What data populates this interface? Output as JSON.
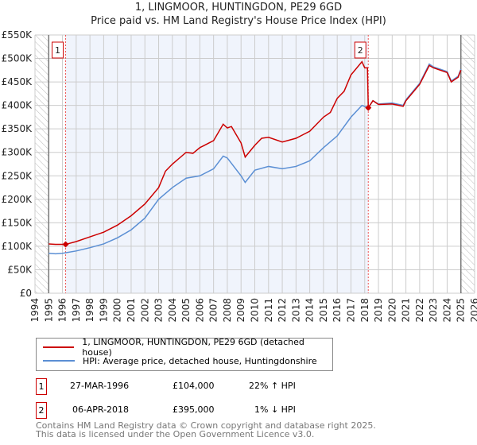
{
  "title": "1, LINGMOOR, HUNTINGDON, PE29 6GD",
  "subtitle": "Price paid vs. HM Land Registry's House Price Index (HPI)",
  "chart_data": {
    "type": "line",
    "ylim": [
      0,
      550000
    ],
    "xlim": [
      1994,
      2026
    ],
    "yticks": [
      {
        "v": 0,
        "l": "£0"
      },
      {
        "v": 50000,
        "l": "£50K"
      },
      {
        "v": 100000,
        "l": "£100K"
      },
      {
        "v": 150000,
        "l": "£150K"
      },
      {
        "v": 200000,
        "l": "£200K"
      },
      {
        "v": 250000,
        "l": "£250K"
      },
      {
        "v": 300000,
        "l": "£300K"
      },
      {
        "v": 350000,
        "l": "£350K"
      },
      {
        "v": 400000,
        "l": "£400K"
      },
      {
        "v": 450000,
        "l": "£450K"
      },
      {
        "v": 500000,
        "l": "£500K"
      },
      {
        "v": 550000,
        "l": "£550K"
      }
    ],
    "xticks": [
      "1994",
      "1995",
      "1996",
      "1997",
      "1998",
      "1999",
      "2000",
      "2001",
      "2002",
      "2003",
      "2004",
      "2005",
      "2006",
      "2007",
      "2008",
      "2009",
      "2010",
      "2011",
      "2012",
      "2013",
      "2014",
      "2015",
      "2016",
      "2017",
      "2018",
      "2019",
      "2020",
      "2021",
      "2022",
      "2023",
      "2024",
      "2025",
      "2026"
    ],
    "data_range": [
      1995,
      2025
    ],
    "shaded_range": [
      1996.23,
      2018.26
    ],
    "series": [
      {
        "name": "1, LINGMOOR, HUNTINGDON, PE29 6GD (detached house)",
        "color": "#cc0000",
        "x": [
          1995,
          1995.5,
          1996.23,
          1997,
          1998,
          1999,
          2000,
          2001,
          2002,
          2003,
          2003.5,
          2004,
          2005,
          2005.5,
          2006,
          2007,
          2007.7,
          2008,
          2008.3,
          2009,
          2009.3,
          2010,
          2010.5,
          2011,
          2012,
          2013,
          2014,
          2015,
          2015.5,
          2016,
          2016.5,
          2017,
          2017.8,
          2018,
          2018.2,
          2018.26,
          2018.6,
          2019,
          2020,
          2020.8,
          2021,
          2022,
          2022.7,
          2023,
          2023.5,
          2024,
          2024.3,
          2024.8,
          2025
        ],
        "y": [
          105000,
          104000,
          104000,
          110000,
          120000,
          130000,
          145000,
          165000,
          190000,
          225000,
          260000,
          275000,
          300000,
          298000,
          310000,
          325000,
          360000,
          352000,
          355000,
          320000,
          290000,
          315000,
          330000,
          332000,
          322000,
          330000,
          345000,
          375000,
          385000,
          415000,
          430000,
          465000,
          493000,
          480000,
          480000,
          395000,
          410000,
          402000,
          403000,
          398000,
          410000,
          445000,
          485000,
          480000,
          475000,
          470000,
          450000,
          460000,
          475000
        ]
      },
      {
        "name": "HPI: Average price, detached house, Huntingdonshire",
        "color": "#5b8fd4",
        "x": [
          1995,
          1995.5,
          1996,
          1997,
          1998,
          1999,
          2000,
          2001,
          2002,
          2003,
          2004,
          2005,
          2006,
          2007,
          2007.7,
          2008,
          2009,
          2009.3,
          2010,
          2011,
          2012,
          2013,
          2014,
          2015,
          2016,
          2017,
          2017.8,
          2018.26,
          2018.6,
          2019,
          2020,
          2020.8,
          2021,
          2022,
          2022.7,
          2023,
          2023.5,
          2024,
          2024.3,
          2024.8,
          2025
        ],
        "y": [
          85000,
          84000,
          85000,
          90000,
          97000,
          105000,
          118000,
          135000,
          160000,
          200000,
          225000,
          245000,
          250000,
          265000,
          292000,
          288000,
          250000,
          236000,
          262000,
          270000,
          265000,
          270000,
          282000,
          310000,
          335000,
          375000,
          400000,
          395000,
          410000,
          403000,
          405000,
          400000,
          412000,
          447000,
          488000,
          482000,
          477000,
          472000,
          452000,
          462000,
          477000
        ]
      }
    ],
    "markers": [
      {
        "label": "1",
        "x": 1996.23,
        "y": 104000
      },
      {
        "label": "2",
        "x": 2018.26,
        "y": 395000
      }
    ]
  },
  "legend": [
    "1, LINGMOOR, HUNTINGDON, PE29 6GD (detached house)",
    "HPI: Average price, detached house, Huntingdonshire"
  ],
  "sales": [
    {
      "num": "1",
      "date": "27-MAR-1996",
      "price": "£104,000",
      "hpi": "22% ↑ HPI"
    },
    {
      "num": "2",
      "date": "06-APR-2018",
      "price": "£395,000",
      "hpi": "1% ↓ HPI"
    }
  ],
  "footer": [
    "Contains HM Land Registry data © Crown copyright and database right 2025.",
    "This data is licensed under the Open Government Licence v3.0."
  ]
}
